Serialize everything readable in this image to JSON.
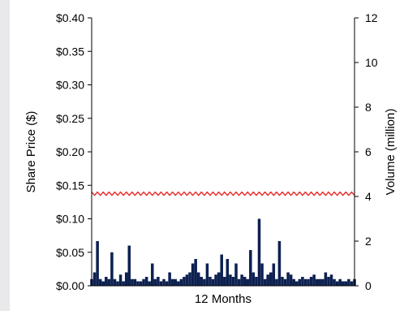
{
  "chart_data": {
    "type": "bar+line",
    "title": "",
    "xlabel": "12 Months",
    "ylabel_left": "Share Price ($)",
    "ylabel_right": "Volume (million)",
    "ylim_left": [
      0,
      0.4
    ],
    "ylim_right": [
      0,
      12
    ],
    "yticks_left": [
      "$0.00",
      "$0.05",
      "$0.10",
      "$0.15",
      "$0.20",
      "$0.25",
      "$0.30",
      "$0.35",
      "$0.40"
    ],
    "yticks_right": [
      "0",
      "2",
      "4",
      "6",
      "8",
      "10",
      "12"
    ],
    "legend": "none",
    "grid": false,
    "colors": {
      "price_line": "#e8302f",
      "volume_bars": "#0d2151"
    },
    "series": [
      {
        "type": "line",
        "axis": "left",
        "x": [
          0,
          4,
          8,
          12,
          16,
          20,
          24,
          28,
          32,
          36,
          40,
          44,
          48,
          52,
          56,
          60,
          64,
          68,
          72,
          76,
          80,
          84,
          88,
          92,
          96,
          100,
          104,
          108,
          112,
          116,
          120,
          124,
          128,
          132,
          136,
          140,
          144,
          148,
          152,
          156,
          160,
          164,
          168,
          172,
          176,
          180,
          184,
          188,
          192,
          196,
          200,
          204,
          208,
          212,
          216,
          220,
          224,
          228,
          232,
          236,
          240,
          244,
          248,
          252,
          256,
          260,
          264,
          268,
          272,
          276,
          280,
          284,
          288,
          292,
          296,
          300,
          304,
          308,
          312,
          316,
          320,
          324,
          328,
          332,
          336,
          340,
          344,
          348,
          352,
          356,
          360,
          364
        ],
        "values": [
          0.14,
          0.135,
          0.14,
          0.135,
          0.14,
          0.135,
          0.14,
          0.135,
          0.14,
          0.135,
          0.14,
          0.135,
          0.14,
          0.135,
          0.14,
          0.135,
          0.14,
          0.135,
          0.14,
          0.135,
          0.14,
          0.135,
          0.14,
          0.135,
          0.14,
          0.135,
          0.14,
          0.135,
          0.14,
          0.135,
          0.14,
          0.135,
          0.14,
          0.135,
          0.14,
          0.135,
          0.14,
          0.135,
          0.14,
          0.135,
          0.14,
          0.135,
          0.14,
          0.135,
          0.14,
          0.135,
          0.14,
          0.135,
          0.14,
          0.135,
          0.14,
          0.135,
          0.14,
          0.135,
          0.14,
          0.135,
          0.14,
          0.135,
          0.14,
          0.135,
          0.14,
          0.135,
          0.14,
          0.135,
          0.14,
          0.135,
          0.14,
          0.135,
          0.14,
          0.135,
          0.14,
          0.135,
          0.14,
          0.135,
          0.14,
          0.135,
          0.14,
          0.135,
          0.14,
          0.135,
          0.14,
          0.135,
          0.14,
          0.135,
          0.14,
          0.135,
          0.14,
          0.135,
          0.14,
          0.135,
          0.14,
          0.135
        ]
      },
      {
        "type": "bar",
        "axis": "right",
        "x": [
          0,
          4,
          8,
          12,
          16,
          20,
          24,
          28,
          32,
          36,
          40,
          44,
          48,
          52,
          56,
          60,
          64,
          68,
          72,
          76,
          80,
          84,
          88,
          92,
          96,
          100,
          104,
          108,
          112,
          116,
          120,
          124,
          128,
          132,
          136,
          140,
          144,
          148,
          152,
          156,
          160,
          164,
          168,
          172,
          176,
          180,
          184,
          188,
          192,
          196,
          200,
          204,
          208,
          212,
          216,
          220,
          224,
          228,
          232,
          236,
          240,
          244,
          248,
          252,
          256,
          260,
          264,
          268,
          272,
          276,
          280,
          284,
          288,
          292,
          296,
          300,
          304,
          308,
          312,
          316,
          320,
          324,
          328,
          332,
          336,
          340,
          344,
          348,
          352,
          356,
          360,
          364
        ],
        "values": [
          0.3,
          0.6,
          2.0,
          0.3,
          0.2,
          0.4,
          0.3,
          1.5,
          0.3,
          0.2,
          0.5,
          0.2,
          0.6,
          1.8,
          0.3,
          0.3,
          0.2,
          0.2,
          0.3,
          0.4,
          0.2,
          1.0,
          0.3,
          0.4,
          0.2,
          0.3,
          0.2,
          0.6,
          0.3,
          0.3,
          0.2,
          0.3,
          0.4,
          0.5,
          0.6,
          1.0,
          1.2,
          0.6,
          0.4,
          0.3,
          1.0,
          0.4,
          0.3,
          0.5,
          0.6,
          1.4,
          0.4,
          1.2,
          0.5,
          0.4,
          1.0,
          0.3,
          0.5,
          0.4,
          0.3,
          1.6,
          0.6,
          0.4,
          3.0,
          1.0,
          0.3,
          0.5,
          0.6,
          1.0,
          0.3,
          2.0,
          0.4,
          0.3,
          0.6,
          0.5,
          0.3,
          0.2,
          0.3,
          0.4,
          0.3,
          0.3,
          0.4,
          0.5,
          0.3,
          0.3,
          0.3,
          0.6,
          0.4,
          0.5,
          0.3,
          0.2,
          0.3,
          0.2,
          0.2,
          0.3,
          0.2,
          0.3
        ]
      }
    ]
  }
}
